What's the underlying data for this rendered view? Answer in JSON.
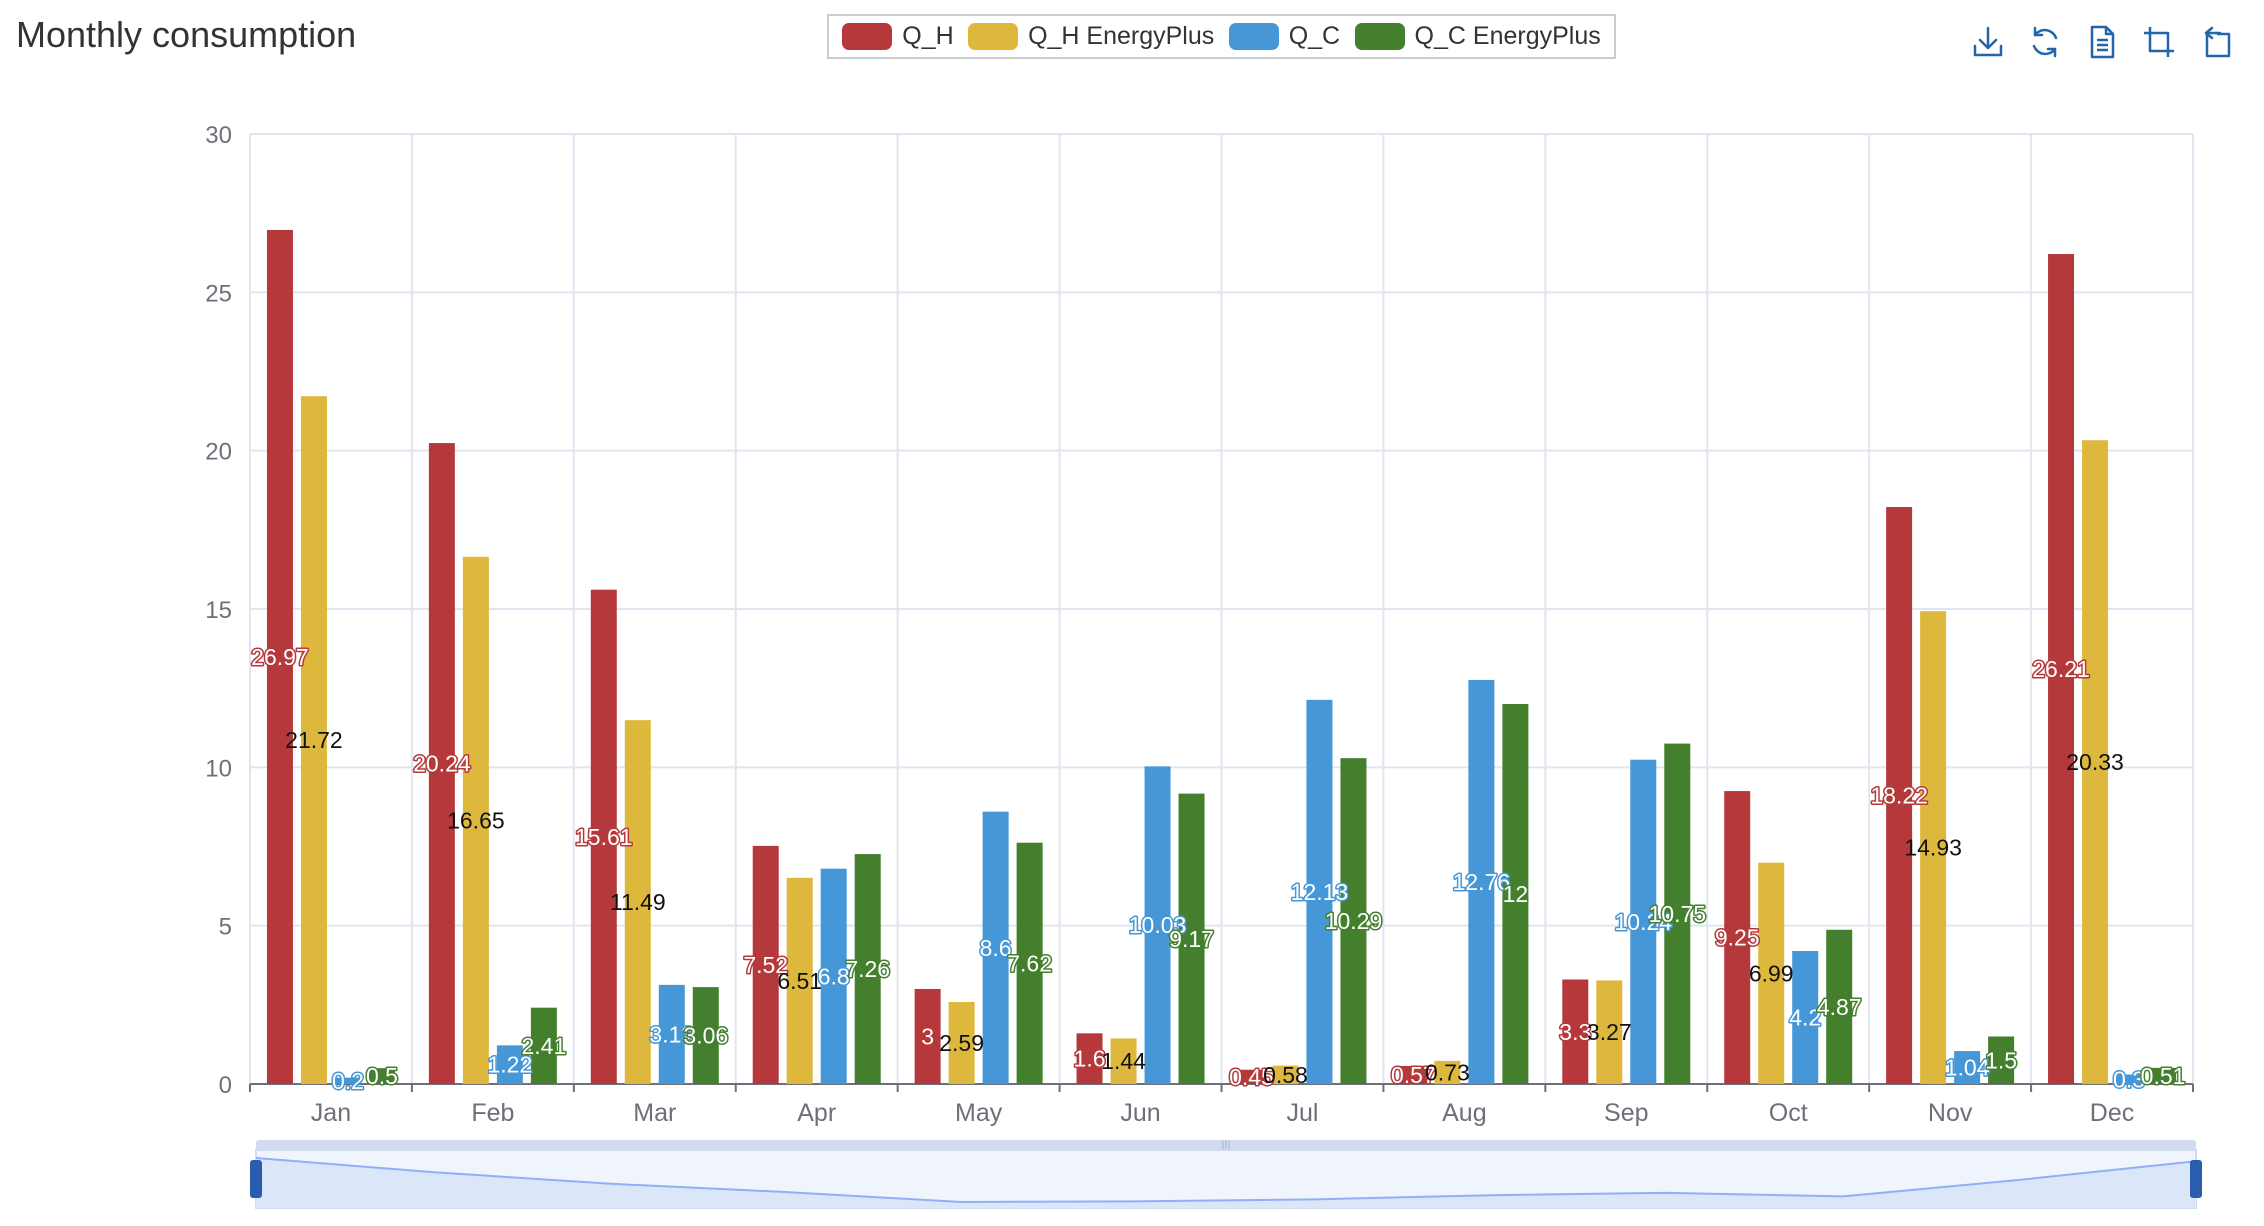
{
  "chart_data": {
    "type": "bar",
    "title": "Monthly consumption",
    "categories": [
      "Jan",
      "Feb",
      "Mar",
      "Apr",
      "May",
      "Jun",
      "Jul",
      "Aug",
      "Sep",
      "Oct",
      "Nov",
      "Dec"
    ],
    "ylim": [
      0,
      30
    ],
    "yticks": [
      0,
      5,
      10,
      15,
      20,
      25,
      30
    ],
    "grid": true,
    "legend_position": "top-center",
    "data_labels": true,
    "dataZoom_slider": true,
    "series": [
      {
        "name": "Q_H",
        "color": "#b5393b",
        "values": [
          26.97,
          20.24,
          15.61,
          7.52,
          3,
          1.6,
          0.45,
          0.57,
          3.3,
          9.25,
          18.22,
          26.21
        ],
        "labels": [
          "26.97",
          "20.24",
          "15.61",
          "7.52",
          "3",
          "1.6",
          "0.45",
          "0.57",
          "3.3",
          "9.25",
          "18.22",
          "26.21"
        ]
      },
      {
        "name": "Q_H EnergyPlus",
        "color": "#deb83d",
        "values": [
          21.72,
          16.65,
          11.49,
          6.51,
          2.59,
          1.44,
          0.58,
          0.73,
          3.27,
          6.99,
          14.93,
          20.33
        ],
        "labels": [
          "21.72",
          "16.65",
          "11.49",
          "6.51",
          "2.59",
          "1.44",
          "0.58",
          "0.73",
          "3.27",
          "6.99",
          "14.93",
          "20.33"
        ]
      },
      {
        "name": "Q_C",
        "color": "#4597d7",
        "values": [
          0.2,
          1.22,
          3.13,
          6.8,
          8.6,
          10.03,
          12.13,
          12.76,
          10.24,
          4.2,
          1.04,
          0.3
        ],
        "labels": [
          "0.2",
          "1.22",
          "3.13",
          "6.8",
          "8.6",
          "10.03",
          "12.13",
          "12.76",
          "10.24",
          "4.2",
          "1.04",
          "0.3"
        ]
      },
      {
        "name": "Q_C EnergyPlus",
        "color": "#437f2d",
        "values": [
          0.5,
          2.41,
          3.06,
          7.26,
          7.62,
          9.17,
          10.29,
          12,
          10.75,
          4.87,
          1.5,
          0.51
        ],
        "labels": [
          "0.5",
          "2.41",
          "3.06",
          "7.26",
          "7.62",
          "9.17",
          "10.29",
          "12",
          "10.75",
          "4.87",
          "1.5",
          "0.51"
        ]
      }
    ]
  },
  "toolbox": {
    "tools": [
      {
        "name": "save-as-image",
        "icon": "download-icon"
      },
      {
        "name": "restore",
        "icon": "refresh-icon"
      },
      {
        "name": "data-view",
        "icon": "document-icon"
      },
      {
        "name": "zoom",
        "icon": "zoom-select-icon"
      },
      {
        "name": "zoom-back",
        "icon": "zoom-back-icon"
      }
    ]
  },
  "dataZoom": {
    "start_percent": 0,
    "end_percent": 100,
    "handle_color": "#2a5db0"
  }
}
